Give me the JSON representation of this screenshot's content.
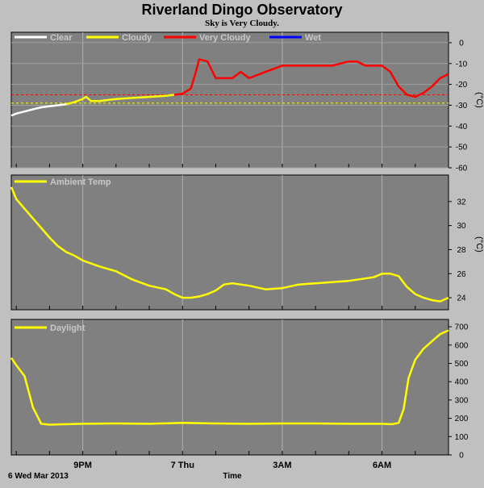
{
  "title": "Riverland Dingo Observatory",
  "subtitle": "Sky is Very Cloudy.",
  "x_axis": {
    "label": "Time",
    "start_label": "6 Wed Mar 2013",
    "tick_labels": [
      {
        "h": 21,
        "label": "9PM"
      },
      {
        "h": 24,
        "label": "7 Thu"
      },
      {
        "h": 27,
        "label": "3AM"
      },
      {
        "h": 30,
        "label": "6AM"
      }
    ]
  },
  "colors": {
    "background": "#c0c0c0",
    "plot": "#808080",
    "grid": "#b0b0b0",
    "clear": "#ffffff",
    "cloudy": "#ffff00",
    "very_cloudy": "#ff0000",
    "wet": "#0000ff",
    "threshold_red": "#ff0000",
    "threshold_yellow": "#ffff00"
  },
  "chart_data": [
    {
      "type": "line",
      "panel": "sky",
      "xlabel": "Time",
      "ylabel": "(°C)",
      "xlim": [
        18.85,
        32.0
      ],
      "ylim": [
        -60,
        5
      ],
      "yticks": [
        0,
        -10,
        -20,
        -30,
        -40,
        -50,
        -60
      ],
      "grid": true,
      "legend": "top-left",
      "thresholds": [
        {
          "value": -25,
          "color": "red"
        },
        {
          "value": -29,
          "color": "yellow"
        }
      ],
      "series": [
        {
          "name": "Clear",
          "color": "#ffffff",
          "x": [
            18.85,
            19.0,
            19.25,
            19.5,
            19.75,
            20.0,
            20.25,
            20.5
          ],
          "y": [
            -35,
            -34,
            -33,
            -32,
            -31,
            -30.5,
            -30,
            -29.5
          ]
        },
        {
          "name": "Cloudy",
          "color": "#ffff00",
          "x": [
            20.5,
            20.75,
            21.0,
            21.1,
            21.25,
            21.5,
            22.0,
            22.5,
            23.0,
            23.5,
            23.75
          ],
          "y": [
            -29.5,
            -28.5,
            -27,
            -26,
            -28,
            -28,
            -27,
            -26.5,
            -26,
            -25.5,
            -25
          ]
        },
        {
          "name": "Very Cloudy",
          "color": "#ff0000",
          "x": [
            23.75,
            24.0,
            24.25,
            24.4,
            24.5,
            24.75,
            25.0,
            25.5,
            25.75,
            26.0,
            26.5,
            27.0,
            27.5,
            28.0,
            28.5,
            29.0,
            29.25,
            29.5,
            30.0,
            30.25,
            30.5,
            30.75,
            31.0,
            31.25,
            31.5,
            31.75,
            32.0
          ],
          "y": [
            -25,
            -24.5,
            -22,
            -14,
            -8,
            -9,
            -17,
            -17,
            -14,
            -17,
            -14,
            -11,
            -11,
            -11,
            -11,
            -9,
            -9,
            -11,
            -11,
            -14,
            -21,
            -25,
            -26,
            -24,
            -21,
            -17,
            -15
          ]
        },
        {
          "name": "Wet",
          "color": "#0000ff",
          "x": [],
          "y": []
        }
      ]
    },
    {
      "type": "line",
      "panel": "ambient",
      "xlabel": "Time",
      "ylabel": "(°C)",
      "xlim": [
        18.85,
        32.0
      ],
      "ylim": [
        23,
        34.2
      ],
      "yticks": [
        24,
        26,
        28,
        30,
        32
      ],
      "grid": true,
      "legend": "top-left",
      "series": [
        {
          "name": "Ambient Temp",
          "color": "#ffff00",
          "x": [
            18.85,
            19.0,
            19.25,
            19.5,
            19.75,
            20.0,
            20.25,
            20.5,
            20.75,
            21.0,
            21.5,
            22.0,
            22.5,
            23.0,
            23.5,
            23.75,
            24.0,
            24.25,
            24.5,
            24.75,
            25.0,
            25.25,
            25.5,
            26.0,
            26.5,
            27.0,
            27.5,
            28.0,
            28.5,
            29.0,
            29.5,
            29.75,
            30.0,
            30.25,
            30.5,
            30.75,
            31.0,
            31.25,
            31.5,
            31.75,
            32.0
          ],
          "y": [
            33.2,
            32.2,
            31.4,
            30.6,
            29.8,
            29.0,
            28.3,
            27.8,
            27.5,
            27.1,
            26.6,
            26.2,
            25.5,
            25.0,
            24.7,
            24.3,
            24.0,
            24.0,
            24.1,
            24.3,
            24.6,
            25.1,
            25.2,
            25.0,
            24.7,
            24.8,
            25.1,
            25.2,
            25.3,
            25.4,
            25.6,
            25.7,
            26.0,
            26.0,
            25.8,
            24.9,
            24.3,
            24.0,
            23.8,
            23.7,
            24.0
          ]
        }
      ]
    },
    {
      "type": "line",
      "panel": "daylight",
      "xlabel": "Time",
      "ylabel": "",
      "xlim": [
        18.85,
        32.0
      ],
      "ylim": [
        0,
        740
      ],
      "yticks": [
        0,
        100,
        200,
        300,
        400,
        500,
        600,
        700
      ],
      "grid": true,
      "legend": "top-left",
      "series": [
        {
          "name": "Daylight",
          "color": "#ffff00",
          "x": [
            18.85,
            19.0,
            19.25,
            19.5,
            19.75,
            20.0,
            20.5,
            21.0,
            22.0,
            23.0,
            24.0,
            25.0,
            26.0,
            27.0,
            28.0,
            29.0,
            29.5,
            30.0,
            30.3,
            30.5,
            30.65,
            30.8,
            31.0,
            31.25,
            31.5,
            31.75,
            32.0
          ],
          "y": [
            530,
            490,
            430,
            260,
            170,
            165,
            168,
            170,
            172,
            170,
            175,
            172,
            170,
            172,
            172,
            170,
            170,
            170,
            168,
            175,
            250,
            420,
            520,
            580,
            620,
            660,
            680
          ]
        }
      ]
    }
  ]
}
